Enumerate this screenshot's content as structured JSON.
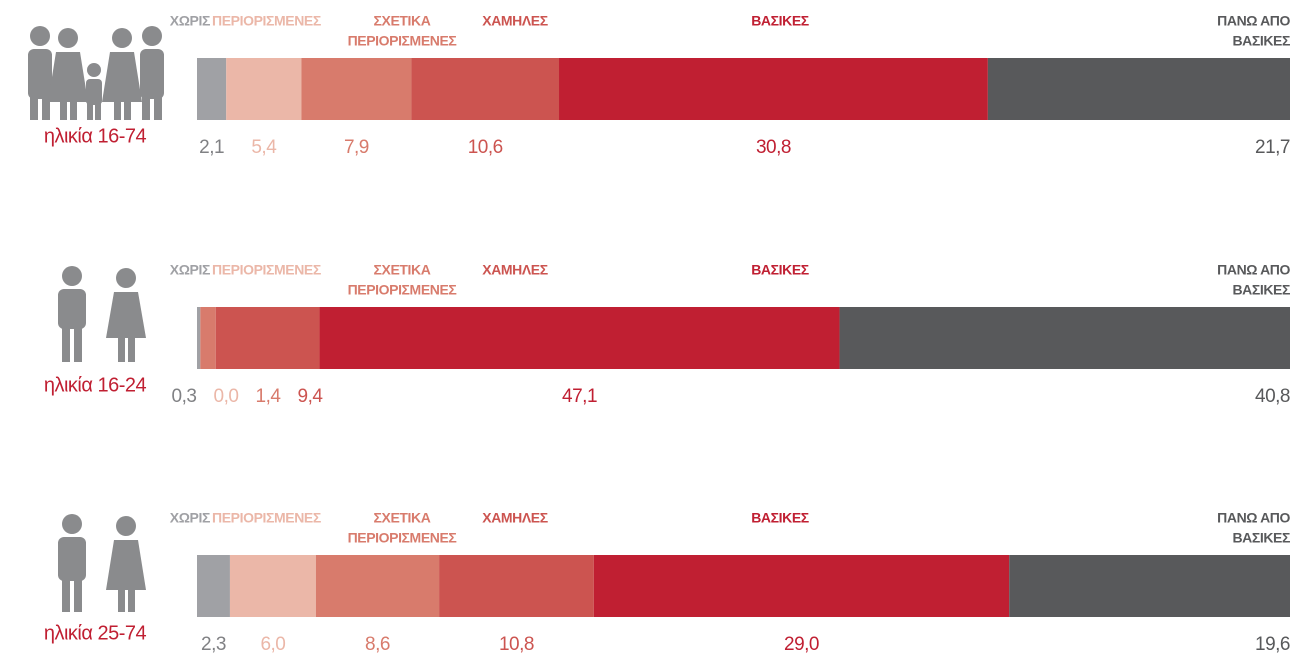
{
  "chart_data": {
    "type": "stacked_bar",
    "categories": [
      [
        "ΧΩΡΙΣ"
      ],
      [
        "ΠΕΡΙΟΡΙΣΜΕΝΕΣ"
      ],
      [
        "ΣΧΕΤΙΚΑ",
        "ΠΕΡΙΟΡΙΣΜΕΝΕΣ"
      ],
      [
        "ΧΑΜΗΛΕΣ"
      ],
      [
        "ΒΑΣΙΚΕΣ"
      ],
      [
        "ΠΑΝΩ ΑΠΟ",
        "ΒΑΣΙΚΕΣ"
      ]
    ],
    "colors": [
      "#a0a1a5",
      "#ebb7a8",
      "#d87b6c",
      "#cc5450",
      "#c01f32",
      "#58595b"
    ],
    "series": [
      {
        "name": "ηλικία 16-74",
        "values": [
          2.1,
          5.4,
          7.9,
          10.6,
          30.8,
          21.7
        ],
        "value_labels": [
          "2,1",
          "5,4",
          "7,9",
          "10,6",
          "30,8",
          "21,7"
        ]
      },
      {
        "name": "ηλικία 16-24",
        "values": [
          0.3,
          0.0,
          1.4,
          9.4,
          47.1,
          40.8
        ],
        "value_labels": [
          "0,3",
          "0,0",
          "1,4",
          "9,4",
          "47,1",
          "40,8"
        ]
      },
      {
        "name": "ηλικία 25-74",
        "values": [
          2.3,
          6.0,
          8.6,
          10.8,
          29.0,
          19.6
        ],
        "value_labels": [
          "2,3",
          "6,0",
          "8,6",
          "10,8",
          "29,0",
          "19,6"
        ]
      }
    ]
  }
}
